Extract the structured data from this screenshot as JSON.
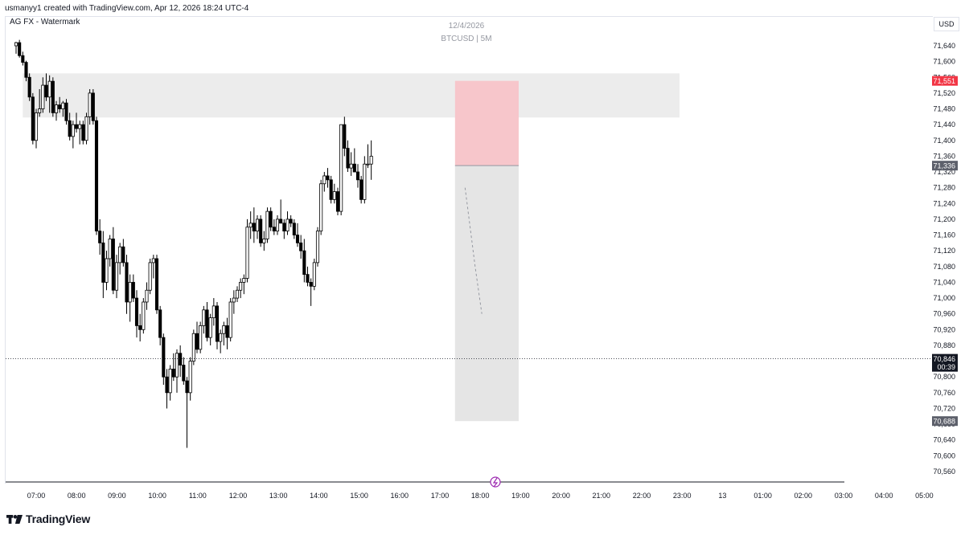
{
  "header": {
    "created_by": "usmanyy1 created with TradingView.com, Apr 12, 2026 18:24 UTC-4"
  },
  "legend": {
    "title": "AG FX - Watermark"
  },
  "watermark": {
    "date": "12/4/2026",
    "symbol": "BTCUSD | 5M"
  },
  "currency": "USD",
  "branding": {
    "logo_text": "TradingView"
  },
  "colors": {
    "up": "#ffffff",
    "down": "#000000",
    "stop": "#f7c6cb",
    "target": "#dcdcdc",
    "zone": "#ececec",
    "stop_label": "#f23645",
    "label_dark": "#131722",
    "label_gray": "#5d606b"
  },
  "chart_data": {
    "type": "candlestick",
    "symbol": "BTCUSD",
    "timeframe": "5M",
    "y_axis_ticks": [
      71640,
      71600,
      71560,
      71520,
      71480,
      71440,
      71400,
      71360,
      71320,
      71280,
      71240,
      71200,
      71160,
      71120,
      71080,
      71040,
      71000,
      70960,
      70920,
      70880,
      70840,
      70800,
      70760,
      70720,
      70680,
      70640,
      70600,
      70560
    ],
    "y_axis_tick_labels": [
      "71,640",
      "71,600",
      "71,560",
      "71,520",
      "71,480",
      "71,440",
      "71,400",
      "71,360",
      "71,320",
      "71,280",
      "71,240",
      "71,200",
      "71,160",
      "71,120",
      "71,080",
      "71,040",
      "71,000",
      "70,960",
      "70,920",
      "70,880",
      "70,840",
      "70,800",
      "70,760",
      "70,720",
      "70,680",
      "70,640",
      "70,600",
      "70,560"
    ],
    "x_axis_labels": [
      "07:00",
      "08:00",
      "09:00",
      "10:00",
      "11:00",
      "12:00",
      "13:00",
      "14:00",
      "15:00",
      "16:00",
      "17:00",
      "18:00",
      "19:00",
      "20:00",
      "21:00",
      "22:00",
      "23:00",
      "13",
      "01:00",
      "02:00",
      "03:00",
      "04:00",
      "05:00"
    ],
    "price_labels": [
      {
        "value": 71551,
        "text": "71,551",
        "kind": "stop"
      },
      {
        "value": 71336,
        "text": "71,336",
        "kind": "entry"
      },
      {
        "value": 70846,
        "text": "70,846",
        "countdown": "00:39",
        "kind": "current"
      },
      {
        "value": 70688,
        "text": "70,688",
        "kind": "target"
      }
    ],
    "supply_zone": {
      "from_time": "06:40",
      "to_time": "23:00",
      "top": 71570,
      "bottom": 71458
    },
    "position": {
      "from_time": "17:25",
      "to_time": "19:00",
      "entry": 71336,
      "stop": 71551,
      "target": 70688
    },
    "current_price": 70846,
    "candles": [
      {
        "t": "06:30",
        "o": 71640,
        "h": 71650,
        "l": 71620,
        "c": 71648
      },
      {
        "t": "06:35",
        "o": 71648,
        "h": 71655,
        "l": 71610,
        "c": 71615
      },
      {
        "t": "06:40",
        "o": 71615,
        "h": 71625,
        "l": 71590,
        "c": 71598
      },
      {
        "t": "06:45",
        "o": 71598,
        "h": 71602,
        "l": 71550,
        "c": 71560
      },
      {
        "t": "06:50",
        "o": 71560,
        "h": 71570,
        "l": 71500,
        "c": 71510
      },
      {
        "t": "06:55",
        "o": 71510,
        "h": 71520,
        "l": 71390,
        "c": 71400
      },
      {
        "t": "07:00",
        "o": 71400,
        "h": 71480,
        "l": 71380,
        "c": 71470
      },
      {
        "t": "07:05",
        "o": 71470,
        "h": 71530,
        "l": 71460,
        "c": 71480
      },
      {
        "t": "07:10",
        "o": 71480,
        "h": 71560,
        "l": 71470,
        "c": 71540
      },
      {
        "t": "07:15",
        "o": 71540,
        "h": 71570,
        "l": 71500,
        "c": 71510
      },
      {
        "t": "07:20",
        "o": 71510,
        "h": 71565,
        "l": 71470,
        "c": 71550
      },
      {
        "t": "07:25",
        "o": 71550,
        "h": 71560,
        "l": 71460,
        "c": 71470
      },
      {
        "t": "07:30",
        "o": 71470,
        "h": 71500,
        "l": 71450,
        "c": 71490
      },
      {
        "t": "07:35",
        "o": 71490,
        "h": 71510,
        "l": 71470,
        "c": 71480
      },
      {
        "t": "07:40",
        "o": 71480,
        "h": 71500,
        "l": 71460,
        "c": 71495
      },
      {
        "t": "07:45",
        "o": 71495,
        "h": 71505,
        "l": 71440,
        "c": 71450
      },
      {
        "t": "07:50",
        "o": 71450,
        "h": 71470,
        "l": 71400,
        "c": 71410
      },
      {
        "t": "07:55",
        "o": 71410,
        "h": 71450,
        "l": 71380,
        "c": 71440
      },
      {
        "t": "08:00",
        "o": 71440,
        "h": 71470,
        "l": 71420,
        "c": 71430
      },
      {
        "t": "08:05",
        "o": 71430,
        "h": 71450,
        "l": 71390,
        "c": 71440
      },
      {
        "t": "08:10",
        "o": 71440,
        "h": 71450,
        "l": 71390,
        "c": 71400
      },
      {
        "t": "08:15",
        "o": 71400,
        "h": 71470,
        "l": 71390,
        "c": 71460
      },
      {
        "t": "08:20",
        "o": 71460,
        "h": 71530,
        "l": 71440,
        "c": 71520
      },
      {
        "t": "08:25",
        "o": 71520,
        "h": 71530,
        "l": 71440,
        "c": 71450
      },
      {
        "t": "08:30",
        "o": 71450,
        "h": 71460,
        "l": 71160,
        "c": 71170
      },
      {
        "t": "08:35",
        "o": 71170,
        "h": 71200,
        "l": 71110,
        "c": 71140
      },
      {
        "t": "08:40",
        "o": 71140,
        "h": 71170,
        "l": 71000,
        "c": 71040
      },
      {
        "t": "08:45",
        "o": 71040,
        "h": 71120,
        "l": 71020,
        "c": 71100
      },
      {
        "t": "08:50",
        "o": 71100,
        "h": 71160,
        "l": 71080,
        "c": 71150
      },
      {
        "t": "08:55",
        "o": 71150,
        "h": 71180,
        "l": 71010,
        "c": 71020
      },
      {
        "t": "09:00",
        "o": 71020,
        "h": 71110,
        "l": 71000,
        "c": 71090
      },
      {
        "t": "09:05",
        "o": 71090,
        "h": 71140,
        "l": 71060,
        "c": 71130
      },
      {
        "t": "09:10",
        "o": 71130,
        "h": 71150,
        "l": 71080,
        "c": 71090
      },
      {
        "t": "09:15",
        "o": 71090,
        "h": 71110,
        "l": 70960,
        "c": 70990
      },
      {
        "t": "09:20",
        "o": 70990,
        "h": 71060,
        "l": 70940,
        "c": 71040
      },
      {
        "t": "09:25",
        "o": 71040,
        "h": 71060,
        "l": 70990,
        "c": 71000
      },
      {
        "t": "09:30",
        "o": 71000,
        "h": 71020,
        "l": 70900,
        "c": 70930
      },
      {
        "t": "09:35",
        "o": 70930,
        "h": 70960,
        "l": 70890,
        "c": 70920
      },
      {
        "t": "09:40",
        "o": 70920,
        "h": 71000,
        "l": 70910,
        "c": 70990
      },
      {
        "t": "09:45",
        "o": 70990,
        "h": 71040,
        "l": 70970,
        "c": 71020
      },
      {
        "t": "09:50",
        "o": 71020,
        "h": 71100,
        "l": 71010,
        "c": 71090
      },
      {
        "t": "09:55",
        "o": 71090,
        "h": 71110,
        "l": 71050,
        "c": 71100
      },
      {
        "t": "10:00",
        "o": 71100,
        "h": 71110,
        "l": 70960,
        "c": 70970
      },
      {
        "t": "10:05",
        "o": 70970,
        "h": 70980,
        "l": 70880,
        "c": 70900
      },
      {
        "t": "10:10",
        "o": 70900,
        "h": 70910,
        "l": 70780,
        "c": 70800
      },
      {
        "t": "10:15",
        "o": 70800,
        "h": 70820,
        "l": 70720,
        "c": 70760
      },
      {
        "t": "10:20",
        "o": 70760,
        "h": 70830,
        "l": 70740,
        "c": 70820
      },
      {
        "t": "10:25",
        "o": 70820,
        "h": 70860,
        "l": 70790,
        "c": 70800
      },
      {
        "t": "10:30",
        "o": 70800,
        "h": 70870,
        "l": 70760,
        "c": 70860
      },
      {
        "t": "10:35",
        "o": 70860,
        "h": 70880,
        "l": 70800,
        "c": 70830
      },
      {
        "t": "10:40",
        "o": 70830,
        "h": 70850,
        "l": 70780,
        "c": 70790
      },
      {
        "t": "10:45",
        "o": 70790,
        "h": 70800,
        "l": 70620,
        "c": 70760
      },
      {
        "t": "10:50",
        "o": 70760,
        "h": 70850,
        "l": 70740,
        "c": 70840
      },
      {
        "t": "10:55",
        "o": 70840,
        "h": 70920,
        "l": 70830,
        "c": 70910
      },
      {
        "t": "11:00",
        "o": 70910,
        "h": 70940,
        "l": 70860,
        "c": 70870
      },
      {
        "t": "11:05",
        "o": 70870,
        "h": 70940,
        "l": 70860,
        "c": 70930
      },
      {
        "t": "11:10",
        "o": 70930,
        "h": 70980,
        "l": 70910,
        "c": 70970
      },
      {
        "t": "11:15",
        "o": 70970,
        "h": 70990,
        "l": 70890,
        "c": 70900
      },
      {
        "t": "11:20",
        "o": 70900,
        "h": 70960,
        "l": 70880,
        "c": 70950
      },
      {
        "t": "11:25",
        "o": 70950,
        "h": 71000,
        "l": 70930,
        "c": 70980
      },
      {
        "t": "11:30",
        "o": 70980,
        "h": 70990,
        "l": 70870,
        "c": 70890
      },
      {
        "t": "11:35",
        "o": 70890,
        "h": 70920,
        "l": 70860,
        "c": 70910
      },
      {
        "t": "11:40",
        "o": 70910,
        "h": 70940,
        "l": 70880,
        "c": 70930
      },
      {
        "t": "11:45",
        "o": 70930,
        "h": 70950,
        "l": 70870,
        "c": 70900
      },
      {
        "t": "11:50",
        "o": 70900,
        "h": 71000,
        "l": 70890,
        "c": 70990
      },
      {
        "t": "11:55",
        "o": 70990,
        "h": 71020,
        "l": 70960,
        "c": 71000
      },
      {
        "t": "12:00",
        "o": 71000,
        "h": 71030,
        "l": 70990,
        "c": 71020
      },
      {
        "t": "12:05",
        "o": 71020,
        "h": 71050,
        "l": 71000,
        "c": 71040
      },
      {
        "t": "12:10",
        "o": 71040,
        "h": 71060,
        "l": 71010,
        "c": 71050
      },
      {
        "t": "12:15",
        "o": 71050,
        "h": 71200,
        "l": 71040,
        "c": 71180
      },
      {
        "t": "12:20",
        "o": 71180,
        "h": 71220,
        "l": 71150,
        "c": 71190
      },
      {
        "t": "12:25",
        "o": 71190,
        "h": 71230,
        "l": 71140,
        "c": 71170
      },
      {
        "t": "12:30",
        "o": 71170,
        "h": 71210,
        "l": 71150,
        "c": 71200
      },
      {
        "t": "12:35",
        "o": 71200,
        "h": 71210,
        "l": 71130,
        "c": 71140
      },
      {
        "t": "12:40",
        "o": 71140,
        "h": 71170,
        "l": 71120,
        "c": 71150
      },
      {
        "t": "12:45",
        "o": 71150,
        "h": 71230,
        "l": 71140,
        "c": 71220
      },
      {
        "t": "12:50",
        "o": 71220,
        "h": 71230,
        "l": 71170,
        "c": 71180
      },
      {
        "t": "12:55",
        "o": 71180,
        "h": 71200,
        "l": 71160,
        "c": 71170
      },
      {
        "t": "13:00",
        "o": 71170,
        "h": 71210,
        "l": 71160,
        "c": 71200
      },
      {
        "t": "13:05",
        "o": 71200,
        "h": 71250,
        "l": 71190,
        "c": 71190
      },
      {
        "t": "13:10",
        "o": 71190,
        "h": 71200,
        "l": 71150,
        "c": 71170
      },
      {
        "t": "13:15",
        "o": 71170,
        "h": 71220,
        "l": 71160,
        "c": 71200
      },
      {
        "t": "13:20",
        "o": 71200,
        "h": 71210,
        "l": 71180,
        "c": 71190
      },
      {
        "t": "13:25",
        "o": 71190,
        "h": 71200,
        "l": 71150,
        "c": 71160
      },
      {
        "t": "13:30",
        "o": 71160,
        "h": 71190,
        "l": 71130,
        "c": 71140
      },
      {
        "t": "13:35",
        "o": 71140,
        "h": 71160,
        "l": 71100,
        "c": 71120
      },
      {
        "t": "13:40",
        "o": 71120,
        "h": 71150,
        "l": 71040,
        "c": 71060
      },
      {
        "t": "13:45",
        "o": 71060,
        "h": 71080,
        "l": 71030,
        "c": 71040
      },
      {
        "t": "13:50",
        "o": 71040,
        "h": 71050,
        "l": 70980,
        "c": 71030
      },
      {
        "t": "13:55",
        "o": 71030,
        "h": 71100,
        "l": 71020,
        "c": 71090
      },
      {
        "t": "14:00",
        "o": 71090,
        "h": 71180,
        "l": 71080,
        "c": 71170
      },
      {
        "t": "14:05",
        "o": 71170,
        "h": 71300,
        "l": 71160,
        "c": 71290
      },
      {
        "t": "14:10",
        "o": 71290,
        "h": 71320,
        "l": 71270,
        "c": 71310
      },
      {
        "t": "14:15",
        "o": 71310,
        "h": 71330,
        "l": 71280,
        "c": 71300
      },
      {
        "t": "14:20",
        "o": 71300,
        "h": 71310,
        "l": 71240,
        "c": 71250
      },
      {
        "t": "14:25",
        "o": 71250,
        "h": 71290,
        "l": 71240,
        "c": 71270
      },
      {
        "t": "14:30",
        "o": 71270,
        "h": 71280,
        "l": 71210,
        "c": 71220
      },
      {
        "t": "14:35",
        "o": 71220,
        "h": 71440,
        "l": 71210,
        "c": 71440
      },
      {
        "t": "14:40",
        "o": 71440,
        "h": 71460,
        "l": 71360,
        "c": 71380
      },
      {
        "t": "14:45",
        "o": 71380,
        "h": 71400,
        "l": 71320,
        "c": 71330
      },
      {
        "t": "14:50",
        "o": 71330,
        "h": 71370,
        "l": 71310,
        "c": 71340
      },
      {
        "t": "14:55",
        "o": 71340,
        "h": 71380,
        "l": 71320,
        "c": 71320
      },
      {
        "t": "15:00",
        "o": 71320,
        "h": 71340,
        "l": 71280,
        "c": 71300
      },
      {
        "t": "15:05",
        "o": 71300,
        "h": 71310,
        "l": 71240,
        "c": 71250
      },
      {
        "t": "15:10",
        "o": 71250,
        "h": 71360,
        "l": 71240,
        "c": 71340
      },
      {
        "t": "15:15",
        "o": 71340,
        "h": 71390,
        "l": 71330,
        "c": 71340
      },
      {
        "t": "15:20",
        "o": 71340,
        "h": 71400,
        "l": 71300,
        "c": 71360
      }
    ]
  }
}
